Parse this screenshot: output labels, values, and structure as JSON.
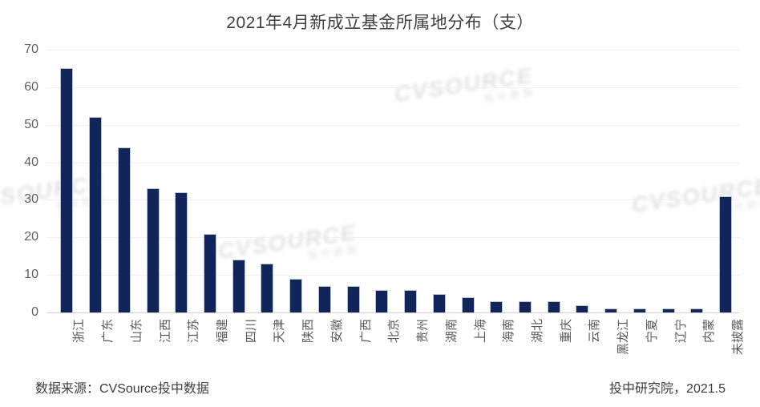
{
  "title": "2021年4月新成立基金所属地分布（支）",
  "footer": {
    "source": "数据来源：CVSource投中数据",
    "credit": "投中研究院，2021.5"
  },
  "watermark": {
    "brand": "CVSOURCE",
    "sub": "投中数据"
  },
  "colors": {
    "bar": "#10265a",
    "bar_border": "#b9c3da",
    "gridline": "#f1f1f1",
    "axis_line": "#d4d4d4",
    "tick_text": "#595959",
    "title_text": "#404040"
  },
  "chart_data": {
    "type": "bar",
    "title": "2021年4月新成立基金所属地分布（支）",
    "categories": [
      "浙江",
      "广东",
      "山东",
      "江西",
      "江苏",
      "福建",
      "四川",
      "天津",
      "陕西",
      "安徽",
      "广西",
      "北京",
      "贵州",
      "湖南",
      "上海",
      "海南",
      "湖北",
      "重庆",
      "云南",
      "黑龙江",
      "宁夏",
      "辽宁",
      "内蒙",
      "未披露"
    ],
    "values": [
      65,
      52,
      44,
      33,
      32,
      21,
      14,
      13,
      9,
      7,
      7,
      6,
      6,
      5,
      4,
      3,
      3,
      3,
      2,
      1,
      1,
      1,
      1,
      31
    ],
    "xlabel": "",
    "ylabel": "",
    "ylim": [
      0,
      70
    ],
    "yticks": [
      0,
      10,
      20,
      30,
      40,
      50,
      60,
      70
    ],
    "grid": true,
    "legend": false,
    "bar_color": "#10265a"
  }
}
